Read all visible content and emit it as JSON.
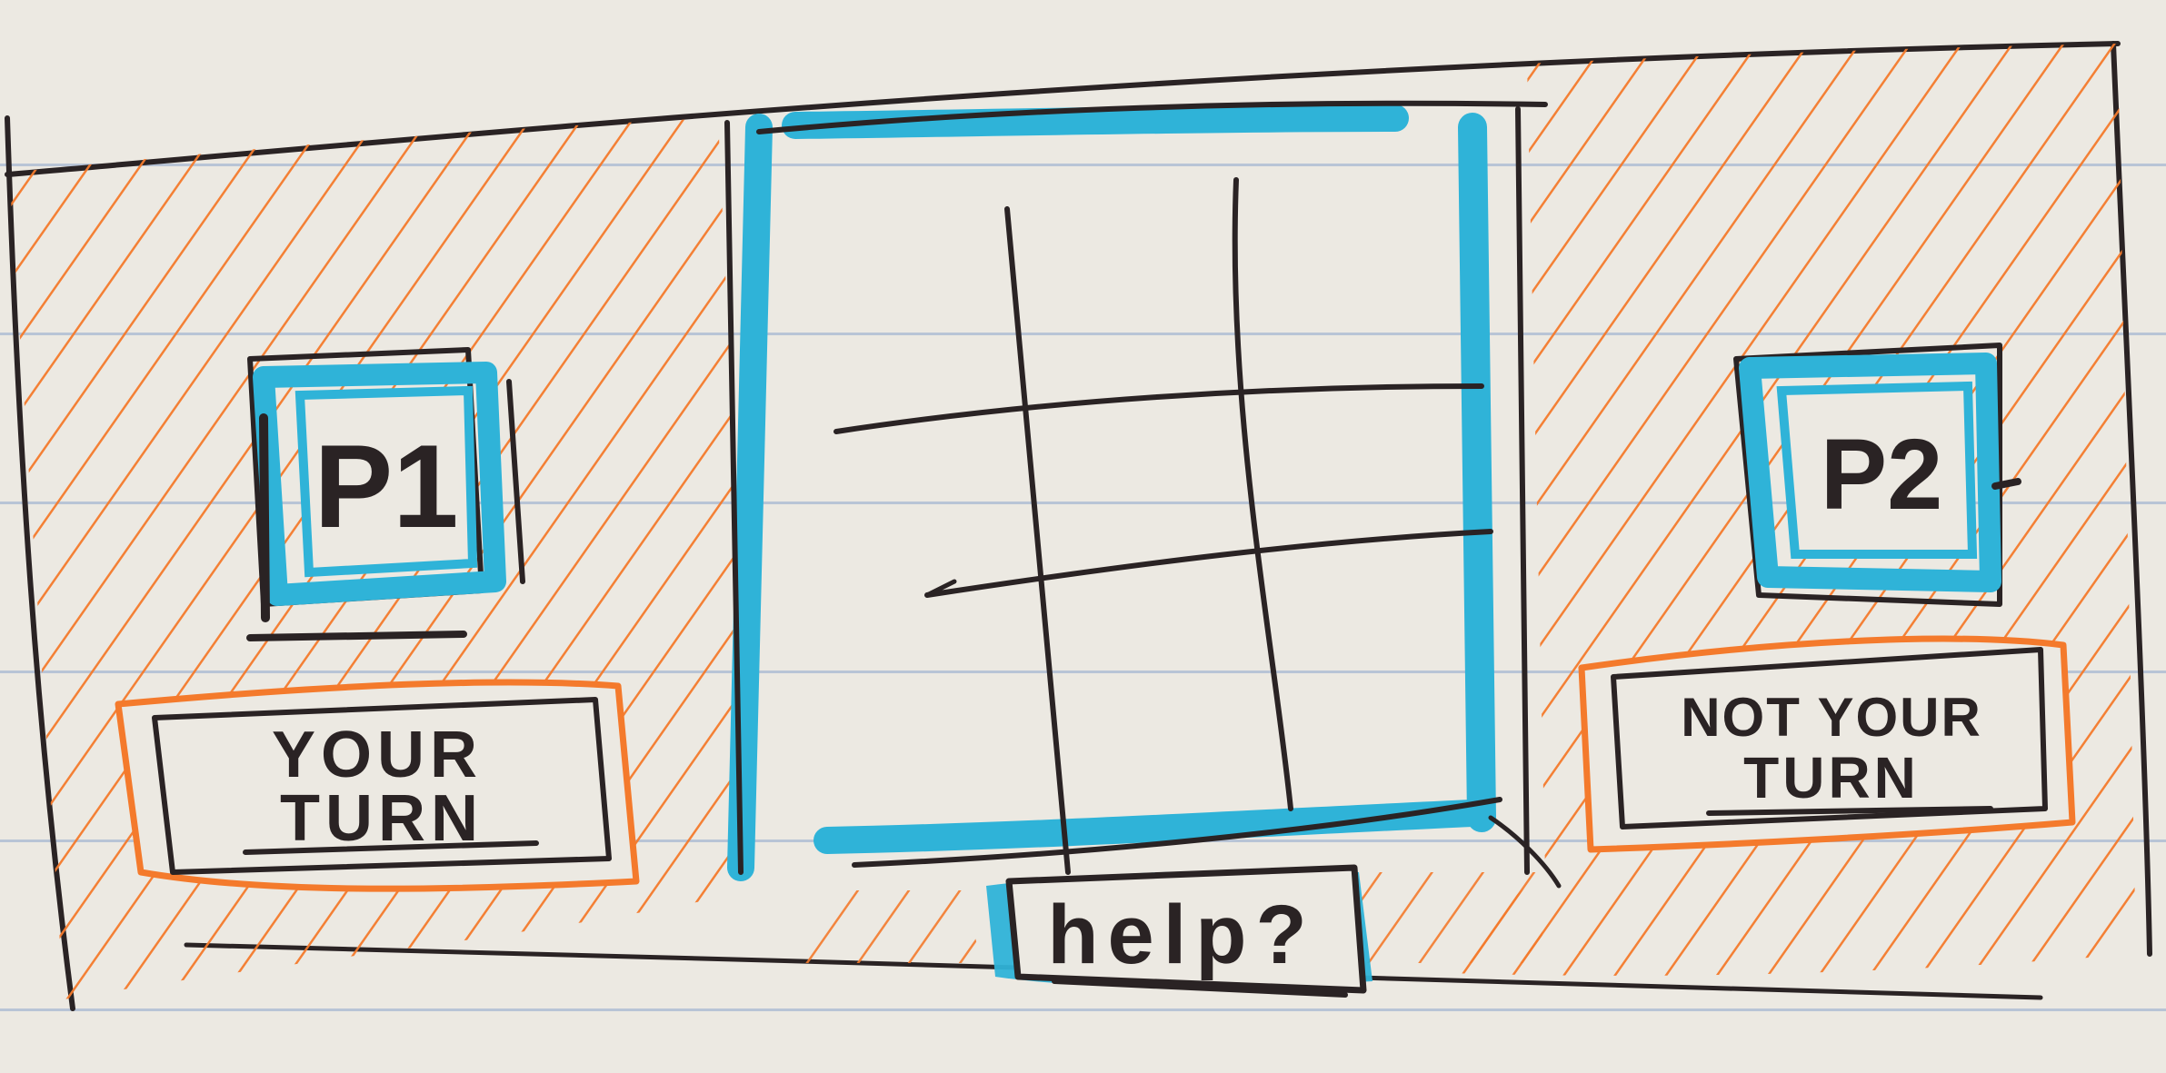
{
  "players": {
    "p1": {
      "label": "P1",
      "status_line1": "YOUR",
      "status_line2": "TURN"
    },
    "p2": {
      "label": "P2",
      "status_line1": "NOT YOUR",
      "status_line2": "TURN"
    }
  },
  "board": {
    "rows": 3,
    "cols": 3,
    "cells": [
      "",
      "",
      "",
      "",
      "",
      "",
      "",
      "",
      ""
    ]
  },
  "help": {
    "label": "help?"
  },
  "colors": {
    "ink": "#2a2324",
    "accent_blue": "#2fb3d8",
    "hatch_orange": "#f47a2c",
    "paper": "#ece9e2",
    "notebook_line": "#8aa3c8"
  },
  "icons": {
    "hatch_pattern": "diagonal-hatch"
  }
}
